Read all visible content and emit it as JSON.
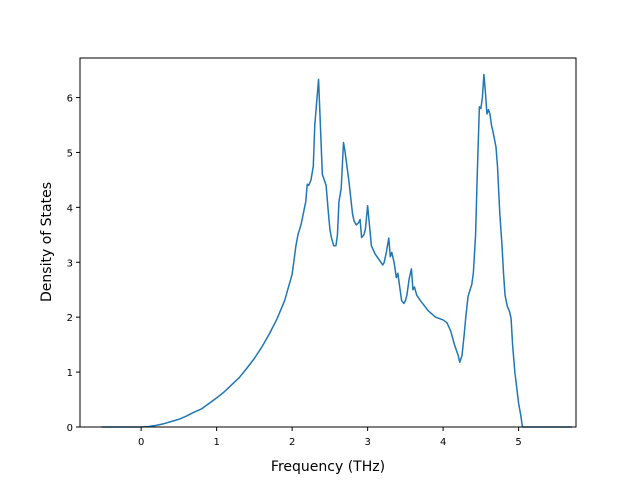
{
  "chart_data": {
    "type": "line",
    "title": "",
    "xlabel": "Frequency (THz)",
    "ylabel": "Density of States",
    "xlim": [
      -0.81,
      5.76
    ],
    "ylim": [
      0,
      6.72
    ],
    "x_ticks": [
      0,
      1,
      2,
      3,
      4,
      5
    ],
    "y_ticks": [
      0,
      1,
      2,
      3,
      4,
      5,
      6
    ],
    "grid": false,
    "legend": "none",
    "line_color": "#1f77b4",
    "series": [
      {
        "x": [
          -0.52,
          -0.3,
          0.0,
          0.1,
          0.2,
          0.3,
          0.4,
          0.5,
          0.6,
          0.7,
          0.8,
          0.9,
          1.0,
          1.1,
          1.2,
          1.3,
          1.4,
          1.5,
          1.6,
          1.7,
          1.8,
          1.9,
          2.0,
          2.05,
          2.08,
          2.1,
          2.12,
          2.15,
          2.18,
          2.2,
          2.22,
          2.25,
          2.28,
          2.3,
          2.35,
          2.4,
          2.45,
          2.48,
          2.5,
          2.52,
          2.55,
          2.58,
          2.6,
          2.62,
          2.65,
          2.68,
          2.7,
          2.75,
          2.8,
          2.82,
          2.85,
          2.88,
          2.9,
          2.92,
          2.95,
          2.97,
          3.0,
          3.05,
          3.1,
          3.15,
          3.2,
          3.22,
          3.25,
          3.28,
          3.3,
          3.32,
          3.35,
          3.38,
          3.4,
          3.42,
          3.45,
          3.48,
          3.5,
          3.52,
          3.55,
          3.58,
          3.6,
          3.62,
          3.65,
          3.7,
          3.8,
          3.9,
          4.0,
          4.05,
          4.1,
          4.15,
          4.2,
          4.22,
          4.25,
          4.28,
          4.3,
          4.33,
          4.38,
          4.4,
          4.43,
          4.45,
          4.48,
          4.5,
          4.52,
          4.54,
          4.56,
          4.58,
          4.6,
          4.62,
          4.64,
          4.66,
          4.7,
          4.72,
          4.75,
          4.78,
          4.8,
          4.82,
          4.85,
          4.88,
          4.9,
          4.92,
          4.95,
          5.0,
          5.03,
          5.05,
          5.08,
          5.1,
          5.12,
          5.15,
          5.2,
          5.7
        ],
        "y": [
          0.0,
          0.0,
          0.0,
          0.01,
          0.03,
          0.06,
          0.1,
          0.14,
          0.2,
          0.27,
          0.33,
          0.43,
          0.53,
          0.64,
          0.77,
          0.9,
          1.07,
          1.25,
          1.46,
          1.7,
          1.97,
          2.3,
          2.78,
          3.3,
          3.52,
          3.6,
          3.7,
          3.9,
          4.1,
          4.42,
          4.4,
          4.5,
          4.75,
          5.5,
          6.33,
          4.6,
          4.4,
          3.9,
          3.6,
          3.45,
          3.3,
          3.3,
          3.5,
          4.1,
          4.35,
          5.18,
          5.02,
          4.5,
          3.88,
          3.75,
          3.68,
          3.72,
          3.78,
          3.45,
          3.5,
          3.6,
          4.03,
          3.3,
          3.15,
          3.05,
          2.95,
          3.0,
          3.2,
          3.44,
          3.1,
          3.18,
          3.0,
          2.72,
          2.8,
          2.6,
          2.3,
          2.25,
          2.3,
          2.4,
          2.7,
          2.88,
          2.5,
          2.55,
          2.4,
          2.3,
          2.12,
          2.0,
          1.95,
          1.9,
          1.75,
          1.5,
          1.3,
          1.18,
          1.3,
          1.7,
          2.0,
          2.38,
          2.6,
          2.8,
          3.5,
          4.5,
          5.83,
          5.8,
          6.0,
          6.42,
          6.1,
          5.7,
          5.78,
          5.7,
          5.5,
          5.38,
          5.1,
          4.75,
          3.9,
          3.3,
          2.8,
          2.4,
          2.2,
          2.1,
          1.98,
          1.5,
          1.0,
          0.43,
          0.2,
          0.0,
          0.0,
          0.0,
          0.0,
          0.0,
          0.0,
          0.0
        ]
      }
    ]
  }
}
